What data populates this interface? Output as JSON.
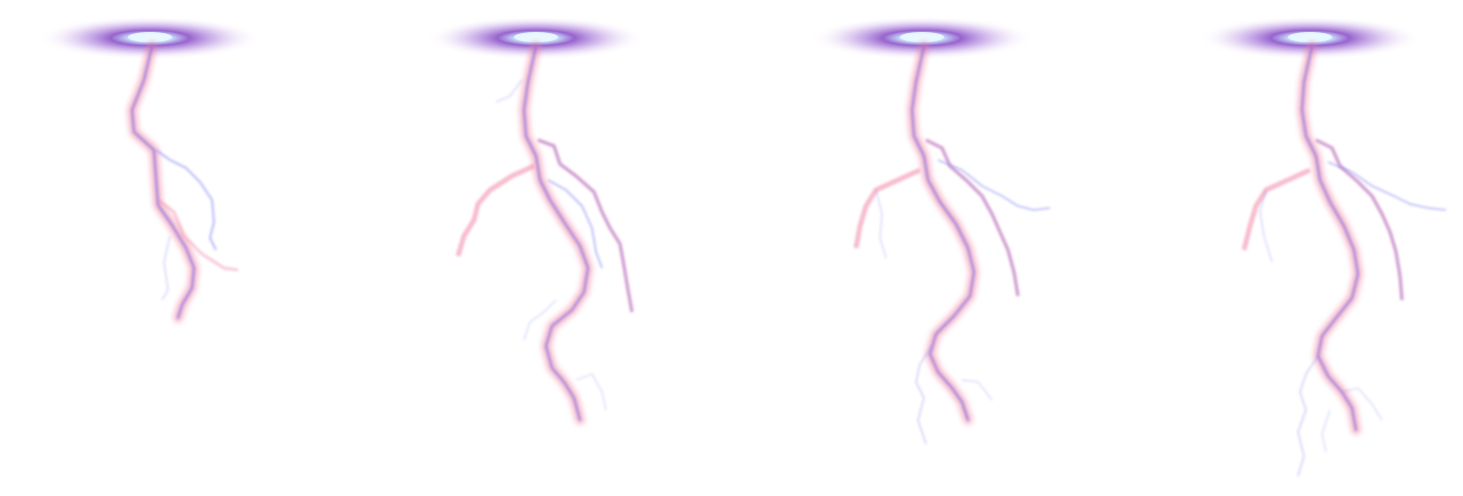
{
  "sprite_sheet": {
    "frame_count": 4,
    "frames": [
      {
        "stage": 1,
        "name": "lightning-frame-1"
      },
      {
        "stage": 2,
        "name": "lightning-frame-2"
      },
      {
        "stage": 3,
        "name": "lightning-frame-3"
      },
      {
        "stage": 4,
        "name": "lightning-frame-4"
      }
    ],
    "colors": {
      "background": "#ffffff",
      "glow_core": "#e8f4ff",
      "glow_mid": "#9a5fd0",
      "glow_outer": "#c9a8ea",
      "pink_trunk": "#f07a9c",
      "blue_trunk": "#6f6ff0",
      "blue_branch": "#8a8af5"
    },
    "icons": [
      "portal-glow-icon",
      "lightning-bolt-icon"
    ]
  }
}
